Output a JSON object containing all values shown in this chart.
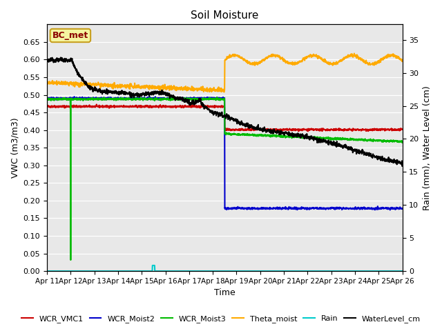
{
  "title": "Soil Moisture",
  "ylabel_left": "VWC (m3/m3)",
  "ylabel_right": "Rain (mm), Water Level (cm)",
  "xlabel": "Time",
  "xlim": [
    0,
    15
  ],
  "ylim_left": [
    0,
    0.7
  ],
  "ylim_right": [
    0,
    37.33
  ],
  "yticks_left": [
    0.0,
    0.05,
    0.1,
    0.15,
    0.2,
    0.25,
    0.3,
    0.35,
    0.4,
    0.45,
    0.5,
    0.55,
    0.6,
    0.65
  ],
  "yticks_right": [
    0,
    5,
    10,
    15,
    20,
    25,
    30,
    35
  ],
  "xtick_labels": [
    "Apr 11",
    "Apr 12",
    "Apr 13",
    "Apr 14",
    "Apr 15",
    "Apr 16",
    "Apr 17",
    "Apr 18",
    "Apr 19",
    "Apr 20",
    "Apr 21",
    "Apr 22",
    "Apr 23",
    "Apr 24",
    "Apr 25",
    "Apr 26"
  ],
  "bg_color": "#e8e8e8",
  "grid_color": "#ffffff",
  "annotation_text": "BC_met",
  "annotation_color": "#8b0000",
  "annotation_bg": "#f5f5a0",
  "annotation_border": "#c8a020",
  "legend_items": [
    {
      "label": "WCR_VMC1",
      "color": "#cc0000",
      "lw": 1.5
    },
    {
      "label": "WCR_Moist2",
      "color": "#0000cc",
      "lw": 1.5
    },
    {
      "label": "WCR_Moist3",
      "color": "#00bb00",
      "lw": 1.5
    },
    {
      "label": "Theta_moist",
      "color": "#ffaa00",
      "lw": 1.5
    },
    {
      "label": "Rain",
      "color": "#00cccc",
      "lw": 1.5
    },
    {
      "label": "WaterLevel_cm",
      "color": "#000000",
      "lw": 1.5
    }
  ],
  "wcr_vmc1_before": 0.467,
  "wcr_vmc1_after": 0.401,
  "wcr_moist2_before": 0.49,
  "wcr_moist2_after": 0.178,
  "wcr_moist3_before": 0.488,
  "wcr_moist3_after_start": 0.39,
  "wcr_moist3_after_slope": -0.003,
  "theta_before_start": 0.535,
  "theta_before_slope": -0.003,
  "theta_after_base": 0.6,
  "theta_after_amp": 0.012,
  "theta_after_freq": 3.8,
  "wl_start": 0.605,
  "wl_break": 7.5,
  "wl_after_start": 0.44,
  "wl_after_slope": -0.011,
  "green_spike_day": 1.0,
  "cyan_spike_day": 4.5,
  "break_day": 7.5
}
